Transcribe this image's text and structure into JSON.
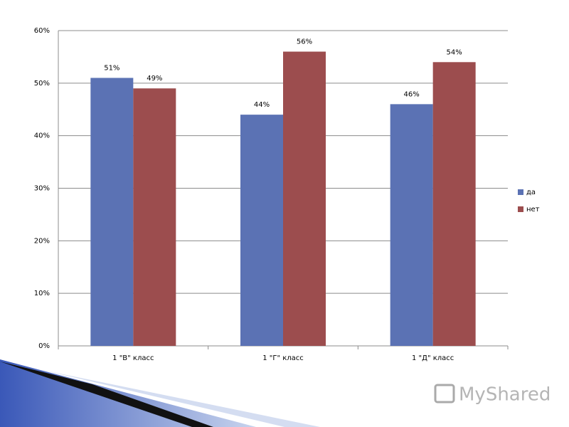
{
  "chart_data": {
    "type": "bar",
    "categories": [
      "1 \"В\" класс",
      "1 \"Г\" класс",
      "1 \"Д\" класс"
    ],
    "series": [
      {
        "name": "да",
        "color": "#5b72b4",
        "values": [
          51,
          44,
          46
        ],
        "value_labels": [
          "51%",
          "44%",
          "46%"
        ]
      },
      {
        "name": "нет",
        "color": "#9c4d4e",
        "values": [
          49,
          56,
          54
        ],
        "value_labels": [
          "49%",
          "56%",
          "54%"
        ]
      }
    ],
    "ylim": [
      0,
      60
    ],
    "yticks": [
      {
        "value": 0,
        "label": "0%"
      },
      {
        "value": 10,
        "label": "10%"
      },
      {
        "value": 20,
        "label": "20%"
      },
      {
        "value": 30,
        "label": "30%"
      },
      {
        "value": 40,
        "label": "40%"
      },
      {
        "value": 50,
        "label": "50%"
      },
      {
        "value": 60,
        "label": "60%"
      }
    ],
    "grid": true,
    "legend": "right"
  },
  "watermark": "MyShared"
}
